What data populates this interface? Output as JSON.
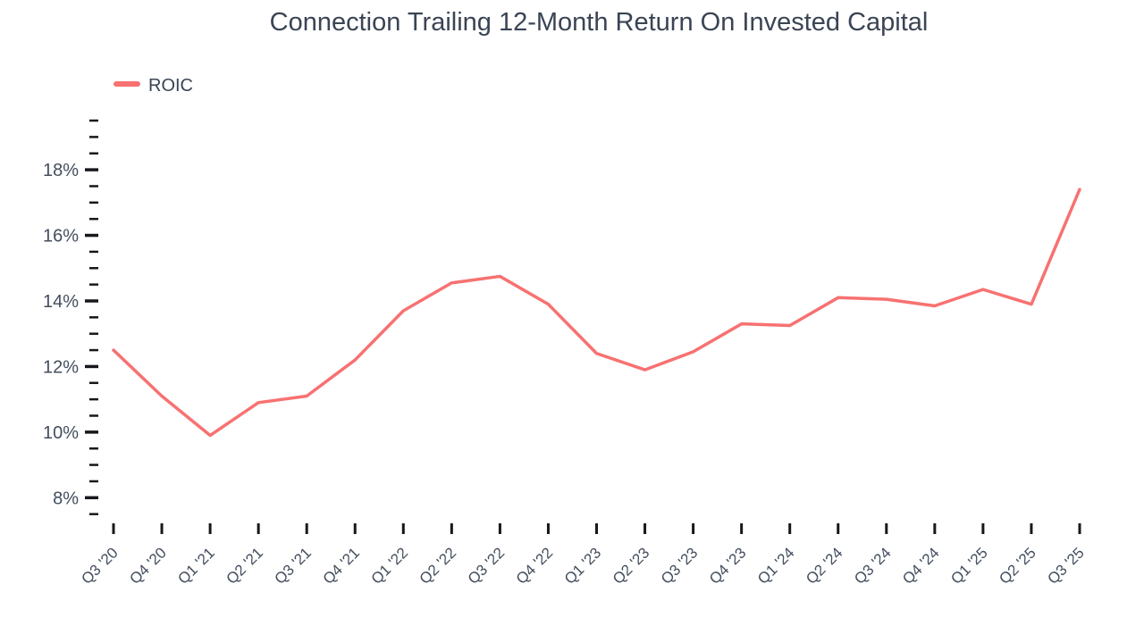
{
  "chart_data": {
    "type": "line",
    "title": "Connection Trailing 12-Month Return On Invested Capital",
    "categories": [
      "Q3 '20",
      "Q4 '20",
      "Q1 '21",
      "Q2 '21",
      "Q3 '21",
      "Q4 '21",
      "Q1 '22",
      "Q2 '22",
      "Q3 '22",
      "Q4 '22",
      "Q1 '23",
      "Q2 '23",
      "Q3 '23",
      "Q4 '23",
      "Q1 '24",
      "Q2 '24",
      "Q3 '24",
      "Q4 '24",
      "Q1 '25",
      "Q2 '25",
      "Q3 '25"
    ],
    "series": [
      {
        "name": "ROIC",
        "values": [
          12.5,
          11.1,
          9.9,
          10.9,
          11.1,
          12.2,
          13.7,
          14.55,
          14.75,
          13.9,
          12.4,
          11.9,
          12.45,
          13.3,
          13.25,
          14.1,
          14.05,
          13.85,
          14.35,
          13.9,
          17.4
        ],
        "color": "#f87171"
      }
    ],
    "xlabel": "",
    "ylabel": "",
    "y_axis": {
      "unit": "%",
      "major_ticks": [
        8,
        10,
        12,
        14,
        16,
        18
      ],
      "minor_step": 0.5,
      "min": 7.5,
      "max": 19.5
    },
    "legend": {
      "position": "top-left",
      "items": [
        "ROIC"
      ]
    },
    "grid": false
  },
  "colors": {
    "line": "#f87171",
    "title": "#3a4454",
    "axis_label": "#434e5e",
    "tick": "#16181d"
  }
}
